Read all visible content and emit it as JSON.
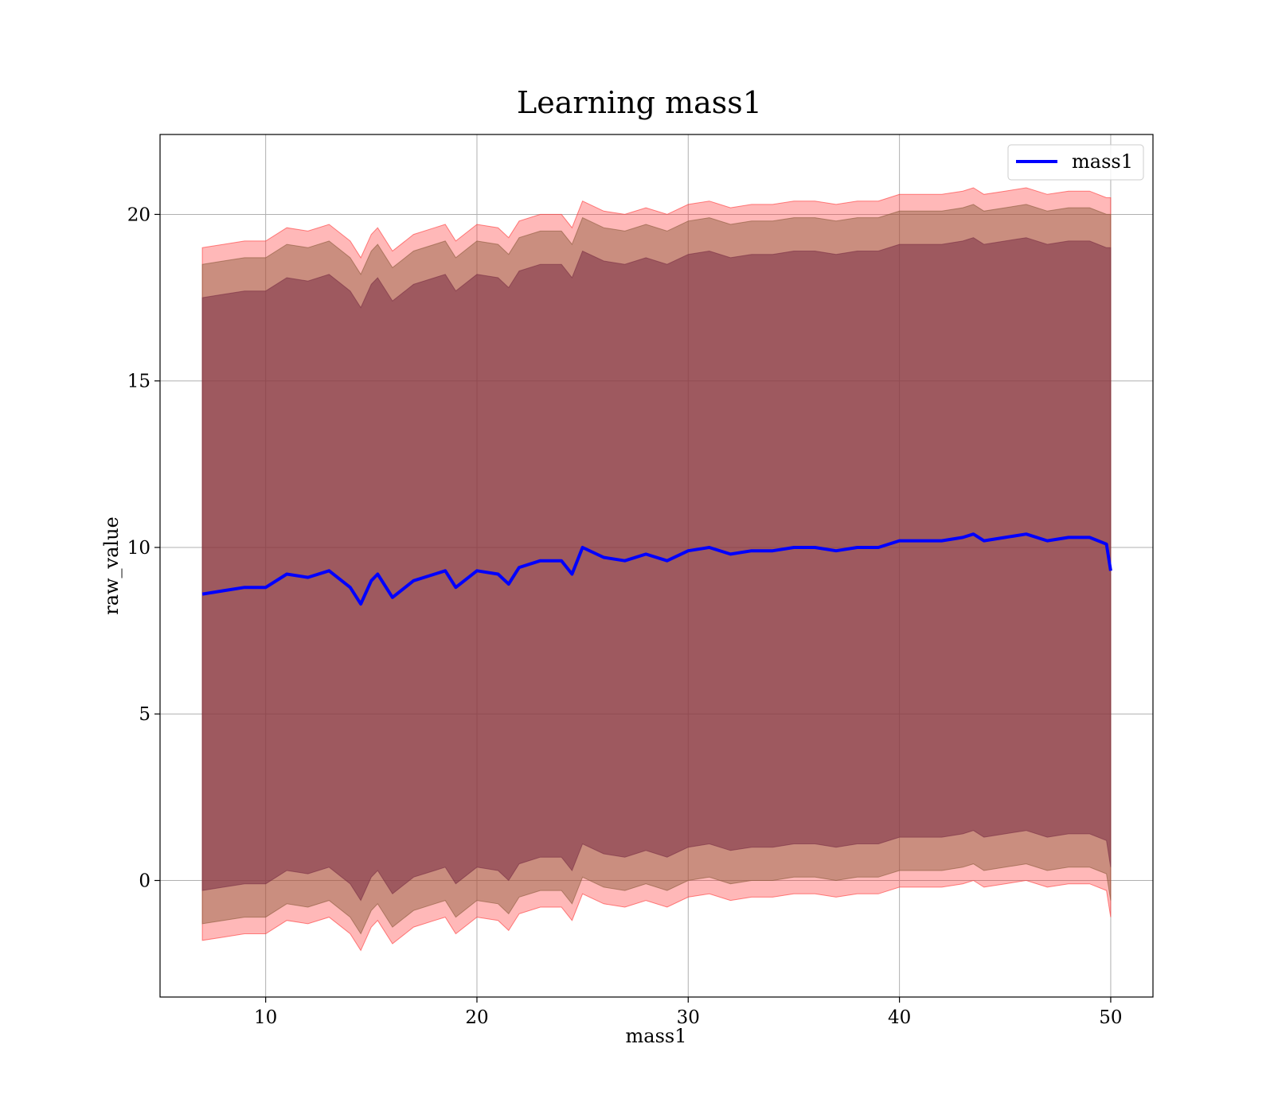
{
  "chart_data": {
    "type": "area",
    "title": "Learning mass1",
    "xlabel": "mass1",
    "ylabel": "raw_value",
    "xlim": [
      5,
      52
    ],
    "ylim": [
      -3.5,
      22.4
    ],
    "xticks": [
      10,
      20,
      30,
      40,
      50
    ],
    "xtick_labels": [
      "10",
      "20",
      "30",
      "40",
      "50"
    ],
    "yticks": [
      0,
      5,
      10,
      15,
      20
    ],
    "ytick_labels": [
      "0",
      "5",
      "10",
      "15",
      "20"
    ],
    "grid": true,
    "legend_position": "top-right",
    "colors": {
      "line": "#0000ff",
      "band_inner": "#7a2e45",
      "band_outer": "#ff3333",
      "grid": "#b0b0b0",
      "axes": "#000000"
    },
    "x": [
      7,
      8,
      9,
      10,
      11,
      12,
      13,
      14,
      14.5,
      15,
      15.3,
      16,
      17,
      18,
      18.5,
      19,
      20,
      21,
      21.5,
      22,
      23,
      24,
      24.5,
      25,
      26,
      27,
      28,
      29,
      30,
      31,
      32,
      33,
      34,
      35,
      36,
      37,
      38,
      39,
      40,
      41,
      42,
      43,
      43.5,
      44,
      45,
      46,
      47,
      48,
      49,
      49.8,
      50
    ],
    "series": [
      {
        "name": "mass1",
        "values": [
          8.6,
          8.7,
          8.8,
          8.8,
          9.2,
          9.1,
          9.3,
          8.8,
          8.3,
          9.0,
          9.2,
          8.5,
          9.0,
          9.2,
          9.3,
          8.8,
          9.3,
          9.2,
          8.9,
          9.4,
          9.6,
          9.6,
          9.2,
          10.0,
          9.7,
          9.6,
          9.8,
          9.6,
          9.9,
          10.0,
          9.8,
          9.9,
          9.9,
          10.0,
          10.0,
          9.9,
          10.0,
          10.0,
          10.2,
          10.2,
          10.2,
          10.3,
          10.4,
          10.2,
          10.3,
          10.4,
          10.2,
          10.3,
          10.3,
          10.1,
          9.3
        ]
      }
    ],
    "bands": [
      {
        "lower": [
          -1.8,
          -1.7,
          -1.6,
          -1.6,
          -1.2,
          -1.3,
          -1.1,
          -1.6,
          -2.1,
          -1.4,
          -1.2,
          -1.9,
          -1.4,
          -1.2,
          -1.1,
          -1.6,
          -1.1,
          -1.2,
          -1.5,
          -1.0,
          -0.8,
          -0.8,
          -1.2,
          -0.4,
          -0.7,
          -0.8,
          -0.6,
          -0.8,
          -0.5,
          -0.4,
          -0.6,
          -0.5,
          -0.5,
          -0.4,
          -0.4,
          -0.5,
          -0.4,
          -0.4,
          -0.2,
          -0.2,
          -0.2,
          -0.1,
          0.0,
          -0.2,
          -0.1,
          0.0,
          -0.2,
          -0.1,
          -0.1,
          -0.3,
          -1.1
        ],
        "upper": [
          19.0,
          19.1,
          19.2,
          19.2,
          19.6,
          19.5,
          19.7,
          19.2,
          18.7,
          19.4,
          19.6,
          18.9,
          19.4,
          19.6,
          19.7,
          19.2,
          19.7,
          19.6,
          19.3,
          19.8,
          20.0,
          20.0,
          19.6,
          20.4,
          20.1,
          20.0,
          20.2,
          20.0,
          20.3,
          20.4,
          20.2,
          20.3,
          20.3,
          20.4,
          20.4,
          20.3,
          20.4,
          20.4,
          20.6,
          20.6,
          20.6,
          20.7,
          20.8,
          20.6,
          20.7,
          20.8,
          20.6,
          20.7,
          20.7,
          20.5,
          20.5
        ]
      },
      {
        "lower": [
          -1.3,
          -1.2,
          -1.1,
          -1.1,
          -0.7,
          -0.8,
          -0.6,
          -1.1,
          -1.6,
          -0.9,
          -0.7,
          -1.4,
          -0.9,
          -0.7,
          -0.6,
          -1.1,
          -0.6,
          -0.7,
          -1.0,
          -0.5,
          -0.3,
          -0.3,
          -0.7,
          0.1,
          -0.2,
          -0.3,
          -0.1,
          -0.3,
          0.0,
          0.1,
          -0.1,
          0.0,
          0.0,
          0.1,
          0.1,
          0.0,
          0.1,
          0.1,
          0.3,
          0.3,
          0.3,
          0.4,
          0.5,
          0.3,
          0.4,
          0.5,
          0.3,
          0.4,
          0.4,
          0.2,
          -0.6
        ],
        "upper": [
          18.5,
          18.6,
          18.7,
          18.7,
          19.1,
          19.0,
          19.2,
          18.7,
          18.2,
          18.9,
          19.1,
          18.4,
          18.9,
          19.1,
          19.2,
          18.7,
          19.2,
          19.1,
          18.8,
          19.3,
          19.5,
          19.5,
          19.1,
          19.9,
          19.6,
          19.5,
          19.7,
          19.5,
          19.8,
          19.9,
          19.7,
          19.8,
          19.8,
          19.9,
          19.9,
          19.8,
          19.9,
          19.9,
          20.1,
          20.1,
          20.1,
          20.2,
          20.3,
          20.1,
          20.2,
          20.3,
          20.1,
          20.2,
          20.2,
          20.0,
          20.0
        ]
      },
      {
        "lower": [
          -0.3,
          -0.2,
          -0.1,
          -0.1,
          0.3,
          0.2,
          0.4,
          -0.1,
          -0.6,
          0.1,
          0.3,
          -0.4,
          0.1,
          0.3,
          0.4,
          -0.1,
          0.4,
          0.3,
          0.0,
          0.5,
          0.7,
          0.7,
          0.3,
          1.1,
          0.8,
          0.7,
          0.9,
          0.7,
          1.0,
          1.1,
          0.9,
          1.0,
          1.0,
          1.1,
          1.1,
          1.0,
          1.1,
          1.1,
          1.3,
          1.3,
          1.3,
          1.4,
          1.5,
          1.3,
          1.4,
          1.5,
          1.3,
          1.4,
          1.4,
          1.2,
          0.4
        ],
        "upper": [
          17.5,
          17.6,
          17.7,
          17.7,
          18.1,
          18.0,
          18.2,
          17.7,
          17.2,
          17.9,
          18.1,
          17.4,
          17.9,
          18.1,
          18.2,
          17.7,
          18.2,
          18.1,
          17.8,
          18.3,
          18.5,
          18.5,
          18.1,
          18.9,
          18.6,
          18.5,
          18.7,
          18.5,
          18.8,
          18.9,
          18.7,
          18.8,
          18.8,
          18.9,
          18.9,
          18.8,
          18.9,
          18.9,
          19.1,
          19.1,
          19.1,
          19.2,
          19.3,
          19.1,
          19.2,
          19.3,
          19.1,
          19.2,
          19.2,
          19.0,
          19.0
        ]
      }
    ]
  }
}
